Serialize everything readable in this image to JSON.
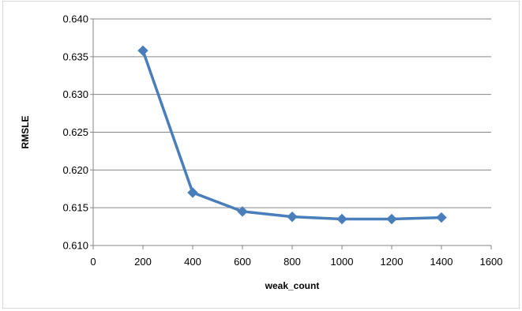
{
  "chart_data": {
    "type": "line",
    "title": "",
    "xlabel": "weak_count",
    "ylabel": "RMSLE",
    "x": [
      200,
      400,
      600,
      800,
      1000,
      1200,
      1400
    ],
    "series": [
      {
        "values": [
          0.6358,
          0.617,
          0.6145,
          0.6138,
          0.6135,
          0.6135,
          0.6137
        ]
      }
    ],
    "xlim": [
      0,
      1600
    ],
    "ylim": [
      0.61,
      0.64
    ],
    "x_ticks": [
      "0",
      "200",
      "400",
      "600",
      "800",
      "1000",
      "1200",
      "1400",
      "1600"
    ],
    "y_ticks": [
      "0.610",
      "0.615",
      "0.620",
      "0.625",
      "0.630",
      "0.635",
      "0.640"
    ],
    "grid": "horizontal",
    "legend": "none",
    "marker": "diamond",
    "colors": {
      "series": "#4a7ebb",
      "grid": "#868686",
      "axis": "#868686"
    }
  }
}
